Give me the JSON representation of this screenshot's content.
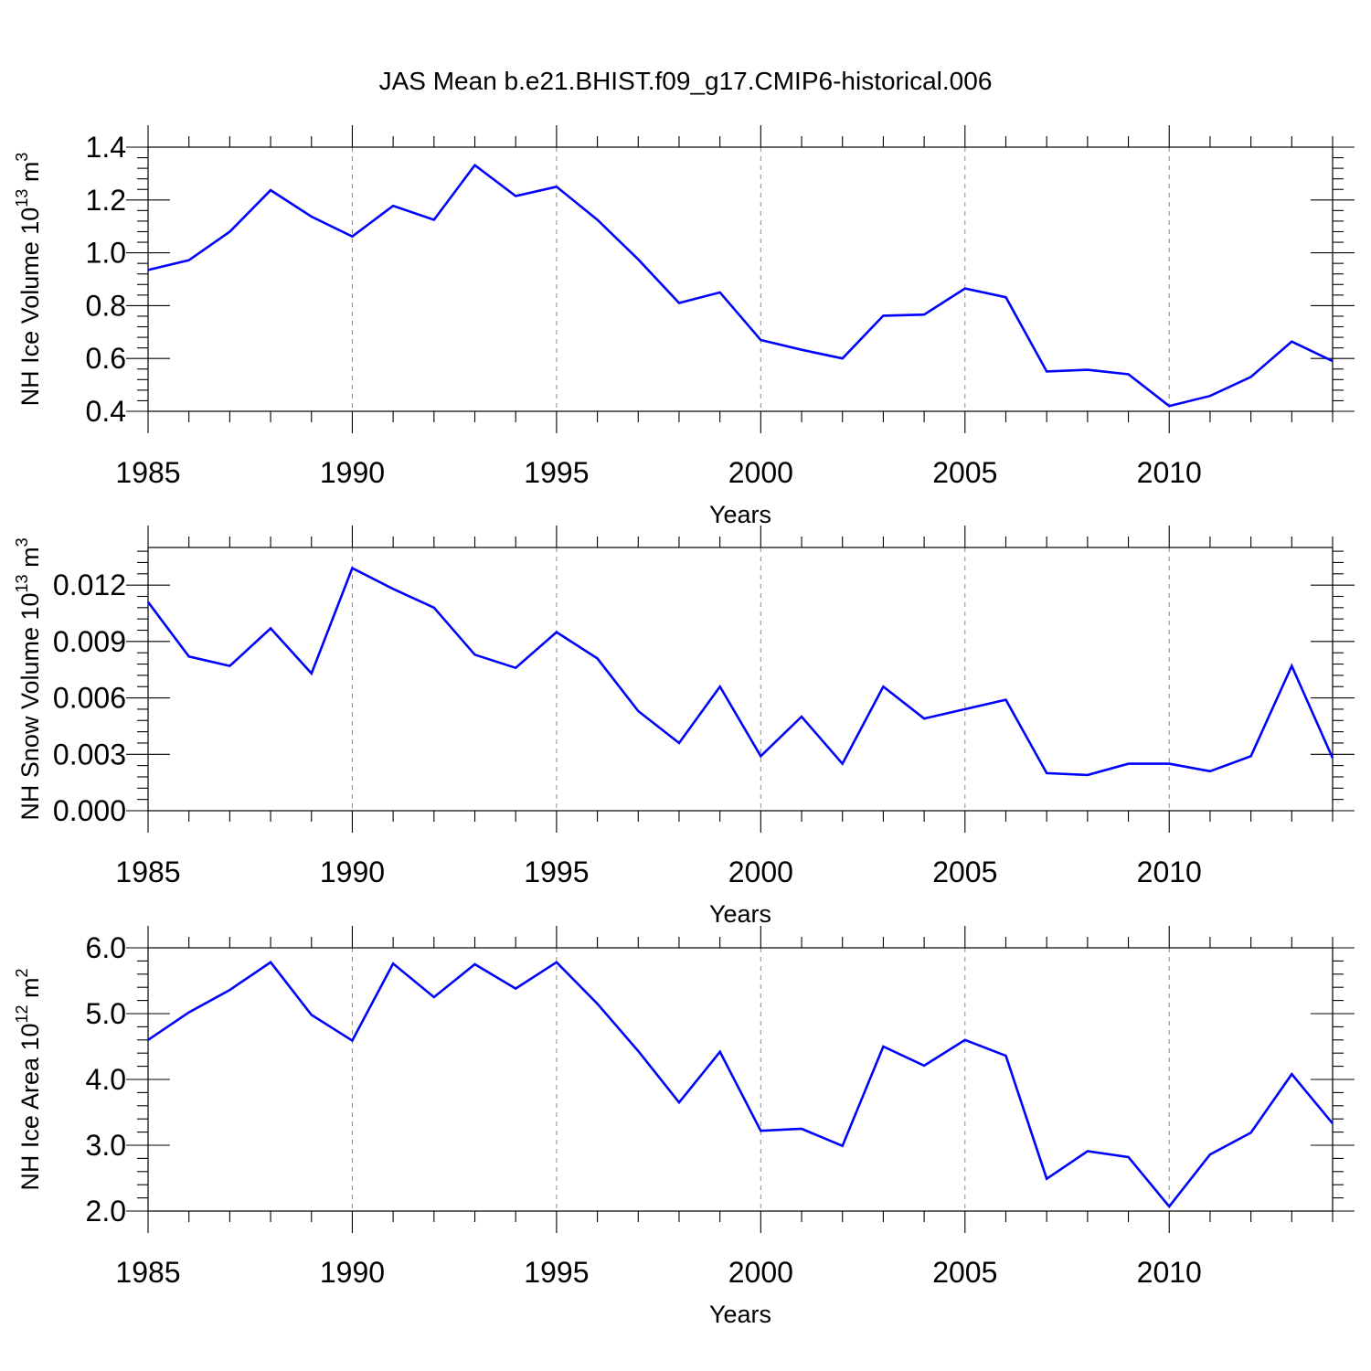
{
  "title": "JAS Mean b.e21.BHIST.f09_g17.CMIP6-historical.006",
  "colors": {
    "line": "#0000ff",
    "axis": "#000000",
    "grid": "#8a8a8a"
  },
  "chart_data": [
    {
      "type": "line",
      "ylabel": "NH Ice Volume 10",
      "ylabel_exp": "13",
      "ylabel_unit": " m",
      "ylabel_unit_exp": "3",
      "xlabel": "Years",
      "xlim": [
        1985,
        2014
      ],
      "ylim": [
        0.4,
        1.4
      ],
      "yticks": [
        0.4,
        0.6,
        0.8,
        1.0,
        1.2,
        1.4
      ],
      "ytick_labels": [
        "0.4",
        "0.6",
        "0.8",
        "1.0",
        "1.2",
        "1.4"
      ],
      "xticks": [
        1985,
        1990,
        1995,
        2000,
        2005,
        2010
      ],
      "xtick_labels": [
        "1985",
        "1990",
        "1995",
        "2000",
        "2005",
        "2010"
      ],
      "grid_x": [
        1990,
        1995,
        2000,
        2005,
        2010
      ],
      "x": [
        1985,
        1986,
        1987,
        1988,
        1989,
        1990,
        1991,
        1992,
        1993,
        1994,
        1995,
        1996,
        1997,
        1998,
        1999,
        2000,
        2001,
        2002,
        2003,
        2004,
        2005,
        2006,
        2007,
        2008,
        2009,
        2010,
        2011,
        2012,
        2013,
        2014
      ],
      "y": [
        0.935,
        0.972,
        1.08,
        1.237,
        1.137,
        1.062,
        1.178,
        1.125,
        1.332,
        1.215,
        1.25,
        1.125,
        0.975,
        0.81,
        0.85,
        0.67,
        0.633,
        0.6,
        0.762,
        0.766,
        0.865,
        0.832,
        0.551,
        0.557,
        0.54,
        0.42,
        0.458,
        0.53,
        0.664,
        0.59
      ]
    },
    {
      "type": "line",
      "ylabel": "NH Snow Volume 10",
      "ylabel_exp": "13",
      "ylabel_unit": " m",
      "ylabel_unit_exp": "3",
      "xlabel": "Years",
      "xlim": [
        1985,
        2014
      ],
      "ylim": [
        0.0,
        0.014
      ],
      "yticks": [
        0.0,
        0.003,
        0.006,
        0.009,
        0.012
      ],
      "ytick_labels": [
        "0.000",
        "0.003",
        "0.006",
        "0.009",
        "0.012"
      ],
      "xticks": [
        1985,
        1990,
        1995,
        2000,
        2005,
        2010
      ],
      "xtick_labels": [
        "1985",
        "1990",
        "1995",
        "2000",
        "2005",
        "2010"
      ],
      "grid_x": [
        1990,
        1995,
        2000,
        2005,
        2010
      ],
      "x": [
        1985,
        1986,
        1987,
        1988,
        1989,
        1990,
        1991,
        1992,
        1993,
        1994,
        1995,
        1996,
        1997,
        1998,
        1999,
        2000,
        2001,
        2002,
        2003,
        2004,
        2005,
        2006,
        2007,
        2008,
        2009,
        2010,
        2011,
        2012,
        2013,
        2014
      ],
      "y": [
        0.0111,
        0.0082,
        0.0077,
        0.0097,
        0.0073,
        0.0129,
        0.0118,
        0.0108,
        0.0083,
        0.0076,
        0.0095,
        0.0081,
        0.0053,
        0.0036,
        0.0066,
        0.0029,
        0.005,
        0.0025,
        0.0066,
        0.0049,
        0.0054,
        0.0059,
        0.002,
        0.0019,
        0.0025,
        0.0025,
        0.0021,
        0.0029,
        0.0077,
        0.0028
      ]
    },
    {
      "type": "line",
      "ylabel": "NH Ice Area 10",
      "ylabel_exp": "12",
      "ylabel_unit": " m",
      "ylabel_unit_exp": "2",
      "xlabel": "Years",
      "xlim": [
        1985,
        2014
      ],
      "ylim": [
        2.0,
        6.0
      ],
      "yticks": [
        2.0,
        3.0,
        4.0,
        5.0,
        6.0
      ],
      "ytick_labels": [
        "2.0",
        "3.0",
        "4.0",
        "5.0",
        "6.0"
      ],
      "xticks": [
        1985,
        1990,
        1995,
        2000,
        2005,
        2010
      ],
      "xtick_labels": [
        "1985",
        "1990",
        "1995",
        "2000",
        "2005",
        "2010"
      ],
      "grid_x": [
        1990,
        1995,
        2000,
        2005,
        2010
      ],
      "x": [
        1985,
        1986,
        1987,
        1988,
        1989,
        1990,
        1991,
        1992,
        1993,
        1994,
        1995,
        1996,
        1997,
        1998,
        1999,
        2000,
        2001,
        2002,
        2003,
        2004,
        2005,
        2006,
        2007,
        2008,
        2009,
        2010,
        2011,
        2012,
        2013,
        2014
      ],
      "y": [
        4.6,
        5.02,
        5.36,
        5.78,
        4.98,
        4.59,
        5.76,
        5.25,
        5.75,
        5.38,
        5.78,
        5.15,
        4.43,
        3.65,
        4.42,
        3.22,
        3.25,
        2.99,
        4.5,
        4.21,
        4.6,
        4.36,
        2.49,
        2.91,
        2.82,
        2.07,
        2.86,
        3.19,
        4.08,
        3.33
      ]
    }
  ]
}
